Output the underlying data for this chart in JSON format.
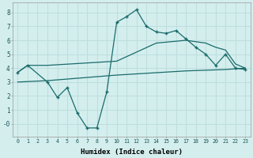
{
  "line1_x": [
    0,
    1,
    3,
    4,
    5,
    6,
    7,
    8,
    9,
    10,
    11,
    12,
    13,
    14,
    15,
    16,
    17,
    18,
    19,
    20,
    21,
    22,
    23
  ],
  "line1_y": [
    3.7,
    4.2,
    3.0,
    1.9,
    2.6,
    0.8,
    -0.3,
    -0.3,
    2.3,
    7.3,
    7.7,
    8.2,
    7.0,
    6.6,
    6.5,
    6.7,
    6.1,
    5.5,
    5.0,
    4.2,
    5.0,
    4.0,
    3.9
  ],
  "line2_x": [
    0,
    1,
    3,
    10,
    14,
    17,
    18,
    19,
    20,
    21,
    22,
    23
  ],
  "line2_y": [
    3.7,
    4.2,
    4.2,
    4.5,
    5.8,
    6.0,
    5.9,
    5.8,
    5.5,
    5.3,
    4.3,
    4.0
  ],
  "line3_x": [
    0,
    3,
    10,
    17,
    21,
    23
  ],
  "line3_y": [
    3.0,
    3.1,
    3.5,
    3.8,
    3.9,
    4.0
  ],
  "line_color": "#1a6b6b",
  "bg_color": "#d4eeee",
  "grid_color": "#c0dede",
  "xlabel": "Humidex (Indice chaleur)",
  "xlim": [
    -0.5,
    23.5
  ],
  "ylim": [
    -0.9,
    8.7
  ],
  "yticks": [
    0,
    1,
    2,
    3,
    4,
    5,
    6,
    7,
    8
  ],
  "ytick_labels": [
    "-0",
    "1",
    "2",
    "3",
    "4",
    "5",
    "6",
    "7",
    "8"
  ],
  "xticks": [
    0,
    1,
    2,
    3,
    4,
    5,
    6,
    7,
    8,
    9,
    10,
    11,
    12,
    13,
    14,
    15,
    16,
    17,
    18,
    19,
    20,
    21,
    22,
    23
  ]
}
